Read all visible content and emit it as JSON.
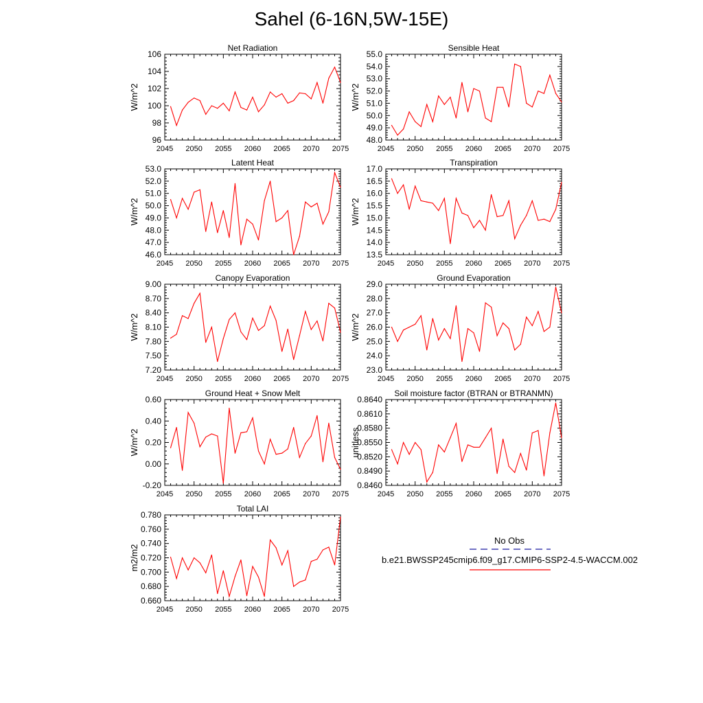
{
  "title": "Sahel (6-16N,5W-15E)",
  "colors": {
    "series": "#ff0000",
    "obs": "#1a1aa0",
    "axis": "#000000"
  },
  "legend": {
    "obs_label": "No Obs",
    "model_label": "b.e21.BWSSP245cmip6.f09_g17.CMIP6-SSP2-4.5-WACCM.002"
  },
  "chart_data": [
    {
      "type": "line",
      "title": "Net Radiation",
      "ylabel": "W/m^2",
      "xlim": [
        2045,
        2075
      ],
      "ylim": [
        96,
        106
      ],
      "xticks": [
        2045,
        2050,
        2055,
        2060,
        2065,
        2070,
        2075
      ],
      "yticks": [
        96,
        98,
        100,
        102,
        104,
        106
      ],
      "yticklabels": [
        "96",
        "98",
        "100",
        "102",
        "104",
        "106"
      ],
      "x": [
        2046,
        2047,
        2048,
        2049,
        2050,
        2051,
        2052,
        2053,
        2054,
        2055,
        2056,
        2057,
        2058,
        2059,
        2060,
        2061,
        2062,
        2063,
        2064,
        2065,
        2066,
        2067,
        2068,
        2069,
        2070,
        2071,
        2072,
        2073,
        2074,
        2075
      ],
      "values": [
        99.9,
        97.7,
        99.5,
        100.4,
        100.9,
        100.6,
        99.0,
        100.0,
        99.7,
        100.3,
        99.4,
        101.6,
        99.8,
        99.5,
        101.0,
        99.3,
        100.1,
        101.6,
        101.0,
        101.4,
        100.3,
        100.6,
        101.5,
        101.4,
        100.8,
        102.7,
        100.3,
        103.2,
        104.5,
        102.7
      ]
    },
    {
      "type": "line",
      "title": "Sensible Heat",
      "ylabel": "W/m^2",
      "xlim": [
        2045,
        2075
      ],
      "ylim": [
        48,
        55
      ],
      "xticks": [
        2045,
        2050,
        2055,
        2060,
        2065,
        2070,
        2075
      ],
      "yticks": [
        48,
        49,
        50,
        51,
        52,
        53,
        54,
        55
      ],
      "yticklabels": [
        "48.0",
        "49.0",
        "50.0",
        "51.0",
        "52.0",
        "53.0",
        "54.0",
        "55.0"
      ],
      "x": [
        2046,
        2047,
        2048,
        2049,
        2050,
        2051,
        2052,
        2053,
        2054,
        2055,
        2056,
        2057,
        2058,
        2059,
        2060,
        2061,
        2062,
        2063,
        2064,
        2065,
        2066,
        2067,
        2068,
        2069,
        2070,
        2071,
        2072,
        2073,
        2074,
        2075
      ],
      "values": [
        49.2,
        48.4,
        48.9,
        50.3,
        49.5,
        49.1,
        50.9,
        49.5,
        51.6,
        50.9,
        51.5,
        49.8,
        52.7,
        50.3,
        52.2,
        52.0,
        49.8,
        49.5,
        52.3,
        52.3,
        50.7,
        54.2,
        54.0,
        51.0,
        50.7,
        52.0,
        51.8,
        53.3,
        51.8,
        51.1
      ]
    },
    {
      "type": "line",
      "title": "Latent Heat",
      "ylabel": "W/m^2",
      "xlim": [
        2045,
        2075
      ],
      "ylim": [
        46,
        53
      ],
      "xticks": [
        2045,
        2050,
        2055,
        2060,
        2065,
        2070,
        2075
      ],
      "yticks": [
        46,
        47,
        48,
        49,
        50,
        51,
        52,
        53
      ],
      "yticklabels": [
        "46.0",
        "47.0",
        "48.0",
        "49.0",
        "50.0",
        "51.0",
        "52.0",
        "53.0"
      ],
      "x": [
        2046,
        2047,
        2048,
        2049,
        2050,
        2051,
        2052,
        2053,
        2054,
        2055,
        2056,
        2057,
        2058,
        2059,
        2060,
        2061,
        2062,
        2063,
        2064,
        2065,
        2066,
        2067,
        2068,
        2069,
        2070,
        2071,
        2072,
        2073,
        2074,
        2075
      ],
      "values": [
        50.5,
        49.0,
        50.6,
        49.7,
        51.1,
        51.3,
        47.9,
        50.3,
        47.8,
        49.6,
        47.4,
        51.8,
        46.8,
        48.9,
        48.5,
        47.2,
        50.4,
        52.0,
        48.7,
        49.0,
        49.6,
        46.0,
        47.5,
        50.3,
        49.9,
        50.2,
        48.5,
        49.5,
        52.7,
        51.5
      ]
    },
    {
      "type": "line",
      "title": "Transpiration",
      "ylabel": "W/m^2",
      "xlim": [
        2045,
        2075
      ],
      "ylim": [
        13.5,
        17
      ],
      "xticks": [
        2045,
        2050,
        2055,
        2060,
        2065,
        2070,
        2075
      ],
      "yticks": [
        13.5,
        14,
        14.5,
        15,
        15.5,
        16,
        16.5,
        17
      ],
      "yticklabels": [
        "13.5",
        "14.0",
        "14.5",
        "15.0",
        "15.5",
        "16.0",
        "16.5",
        "17.0"
      ],
      "x": [
        2046,
        2047,
        2048,
        2049,
        2050,
        2051,
        2052,
        2053,
        2054,
        2055,
        2056,
        2057,
        2058,
        2059,
        2060,
        2061,
        2062,
        2063,
        2064,
        2065,
        2066,
        2067,
        2068,
        2069,
        2070,
        2071,
        2072,
        2073,
        2074,
        2075
      ],
      "values": [
        16.6,
        16.0,
        16.35,
        15.35,
        16.3,
        15.7,
        15.65,
        15.6,
        15.3,
        15.8,
        13.95,
        15.8,
        15.2,
        15.1,
        14.6,
        14.9,
        14.5,
        15.95,
        15.05,
        15.1,
        15.7,
        14.15,
        14.7,
        15.1,
        15.7,
        14.9,
        14.95,
        14.85,
        15.35,
        16.45
      ]
    },
    {
      "type": "line",
      "title": "Canopy Evaporation",
      "ylabel": "W/m^2",
      "xlim": [
        2045,
        2075
      ],
      "ylim": [
        7.2,
        9.0
      ],
      "xticks": [
        2045,
        2050,
        2055,
        2060,
        2065,
        2070,
        2075
      ],
      "yticks": [
        7.2,
        7.5,
        7.8,
        8.1,
        8.4,
        8.7,
        9.0
      ],
      "yticklabels": [
        "7.20",
        "7.50",
        "7.80",
        "8.10",
        "8.40",
        "8.70",
        "9.00"
      ],
      "x": [
        2046,
        2047,
        2048,
        2049,
        2050,
        2051,
        2052,
        2053,
        2054,
        2055,
        2056,
        2057,
        2058,
        2059,
        2060,
        2061,
        2062,
        2063,
        2064,
        2065,
        2066,
        2067,
        2068,
        2069,
        2070,
        2071,
        2072,
        2073,
        2074,
        2075
      ],
      "values": [
        7.87,
        7.95,
        8.34,
        8.28,
        8.6,
        8.81,
        7.78,
        8.1,
        7.38,
        7.86,
        8.26,
        8.4,
        8.0,
        7.84,
        8.29,
        8.03,
        8.13,
        8.54,
        8.24,
        7.59,
        8.06,
        7.42,
        7.92,
        8.43,
        8.05,
        8.23,
        7.81,
        8.6,
        8.5,
        7.99
      ]
    },
    {
      "type": "line",
      "title": "Ground Evaporation",
      "ylabel": "W/m^2",
      "xlim": [
        2045,
        2075
      ],
      "ylim": [
        23,
        29
      ],
      "xticks": [
        2045,
        2050,
        2055,
        2060,
        2065,
        2070,
        2075
      ],
      "yticks": [
        23,
        24,
        25,
        26,
        27,
        28,
        29
      ],
      "yticklabels": [
        "23.0",
        "24.0",
        "25.0",
        "26.0",
        "27.0",
        "28.0",
        "29.0"
      ],
      "x": [
        2046,
        2047,
        2048,
        2049,
        2050,
        2051,
        2052,
        2053,
        2054,
        2055,
        2056,
        2057,
        2058,
        2059,
        2060,
        2061,
        2062,
        2063,
        2064,
        2065,
        2066,
        2067,
        2068,
        2069,
        2070,
        2071,
        2072,
        2073,
        2074,
        2075
      ],
      "values": [
        26.0,
        25.0,
        25.8,
        26.0,
        26.2,
        26.8,
        24.4,
        26.6,
        25.1,
        25.9,
        25.2,
        27.5,
        23.6,
        25.9,
        25.6,
        24.3,
        27.7,
        27.4,
        25.4,
        26.3,
        25.9,
        24.4,
        24.8,
        26.7,
        26.1,
        27.1,
        25.7,
        26.0,
        28.8,
        27.0
      ]
    },
    {
      "type": "line",
      "title": "Ground Heat + Snow Melt",
      "ylabel": "W/m^2",
      "xlim": [
        2045,
        2075
      ],
      "ylim": [
        -0.2,
        0.6
      ],
      "xticks": [
        2045,
        2050,
        2055,
        2060,
        2065,
        2070,
        2075
      ],
      "yticks": [
        -0.2,
        0.0,
        0.2,
        0.4,
        0.6
      ],
      "yticklabels": [
        "-0.20",
        "0.00",
        "0.20",
        "0.40",
        "0.60"
      ],
      "x": [
        2046,
        2047,
        2048,
        2049,
        2050,
        2051,
        2052,
        2053,
        2054,
        2055,
        2056,
        2057,
        2058,
        2059,
        2060,
        2061,
        2062,
        2063,
        2064,
        2065,
        2066,
        2067,
        2068,
        2069,
        2070,
        2071,
        2072,
        2073,
        2074,
        2075
      ],
      "values": [
        0.15,
        0.34,
        -0.06,
        0.48,
        0.38,
        0.16,
        0.25,
        0.28,
        0.26,
        -0.18,
        0.52,
        0.1,
        0.29,
        0.3,
        0.43,
        0.12,
        0.0,
        0.23,
        0.09,
        0.1,
        0.14,
        0.34,
        0.06,
        0.19,
        0.26,
        0.45,
        0.02,
        0.38,
        0.06,
        -0.05
      ]
    },
    {
      "type": "line",
      "title": "Soil moisture factor (BTRAN or BTRANMN)",
      "ylabel": "unitless",
      "xlim": [
        2045,
        2075
      ],
      "ylim": [
        0.846,
        0.864
      ],
      "xticks": [
        2045,
        2050,
        2055,
        2060,
        2065,
        2070,
        2075
      ],
      "yticks": [
        0.846,
        0.849,
        0.852,
        0.855,
        0.858,
        0.861,
        0.864
      ],
      "yticklabels": [
        "0.8460",
        "0.8490",
        "0.8520",
        "0.8550",
        "0.8580",
        "0.8610",
        "0.8640"
      ],
      "x": [
        2046,
        2047,
        2048,
        2049,
        2050,
        2051,
        2052,
        2053,
        2054,
        2055,
        2056,
        2057,
        2058,
        2059,
        2060,
        2061,
        2062,
        2063,
        2064,
        2065,
        2066,
        2067,
        2068,
        2069,
        2070,
        2071,
        2072,
        2073,
        2074,
        2075
      ],
      "values": [
        0.8535,
        0.8505,
        0.855,
        0.8525,
        0.855,
        0.8535,
        0.8467,
        0.8487,
        0.8545,
        0.853,
        0.856,
        0.859,
        0.851,
        0.8545,
        0.854,
        0.854,
        0.856,
        0.858,
        0.8485,
        0.8557,
        0.85,
        0.8487,
        0.8527,
        0.8492,
        0.857,
        0.8575,
        0.848,
        0.857,
        0.8633,
        0.856
      ]
    },
    {
      "type": "line",
      "title": "Total LAI",
      "ylabel": "m2/m2",
      "xlim": [
        2045,
        2075
      ],
      "ylim": [
        0.66,
        0.78
      ],
      "xticks": [
        2045,
        2050,
        2055,
        2060,
        2065,
        2070,
        2075
      ],
      "yticks": [
        0.66,
        0.68,
        0.7,
        0.72,
        0.74,
        0.76,
        0.78
      ],
      "yticklabels": [
        "0.660",
        "0.680",
        "0.700",
        "0.720",
        "0.740",
        "0.760",
        "0.780"
      ],
      "x": [
        2046,
        2047,
        2048,
        2049,
        2050,
        2051,
        2052,
        2053,
        2054,
        2055,
        2056,
        2057,
        2058,
        2059,
        2060,
        2061,
        2062,
        2063,
        2064,
        2065,
        2066,
        2067,
        2068,
        2069,
        2070,
        2071,
        2072,
        2073,
        2074,
        2075
      ],
      "values": [
        0.721,
        0.691,
        0.72,
        0.703,
        0.72,
        0.713,
        0.699,
        0.724,
        0.67,
        0.702,
        0.666,
        0.694,
        0.717,
        0.667,
        0.708,
        0.693,
        0.666,
        0.745,
        0.734,
        0.71,
        0.73,
        0.68,
        0.686,
        0.689,
        0.715,
        0.718,
        0.731,
        0.735,
        0.71,
        0.777
      ]
    }
  ]
}
